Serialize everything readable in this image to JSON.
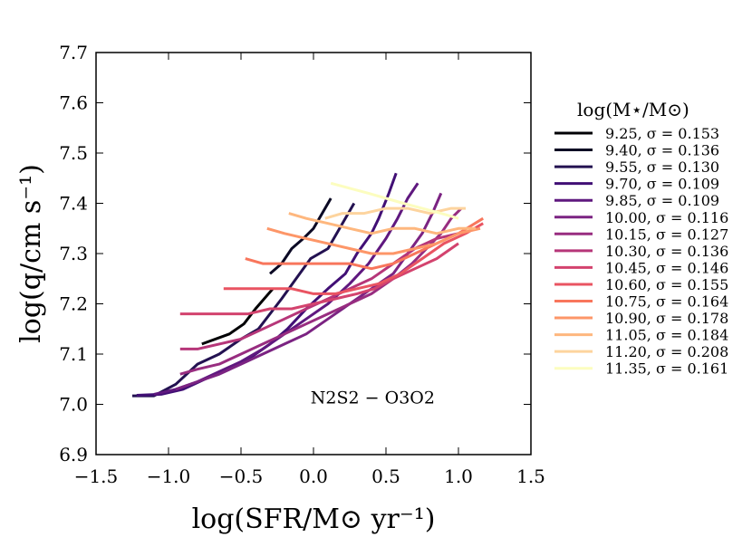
{
  "chart_data": {
    "type": "line",
    "xlabel": "log(SFR/M⊙ yr⁻¹)",
    "ylabel": "log(q/cm s⁻¹)",
    "xlim": [
      -1.5,
      1.5
    ],
    "ylim": [
      6.9,
      7.7
    ],
    "xticks": [
      -1.5,
      -1.0,
      -0.5,
      0.0,
      0.5,
      1.0,
      1.5
    ],
    "xtick_labels": [
      "−1.5",
      "−1.0",
      "−0.5",
      "0.0",
      "0.5",
      "1.0",
      "1.5"
    ],
    "yticks": [
      6.9,
      7.0,
      7.1,
      7.2,
      7.3,
      7.4,
      7.5,
      7.6,
      7.7
    ],
    "ytick_labels": [
      "6.9",
      "7.0",
      "7.1",
      "7.2",
      "7.3",
      "7.4",
      "7.5",
      "7.6",
      "7.7"
    ],
    "grid": false,
    "annotation": "N2S2 − O3O2",
    "legend": {
      "title": "log(M⋆/M⊙)",
      "placement": "right, outside plot"
    },
    "series": [
      {
        "name": "9.25,  σ = 0.153",
        "color": "#000004",
        "x": [
          -0.77,
          -0.58,
          -0.48,
          -0.4,
          -0.28
        ],
        "y": [
          7.12,
          7.14,
          7.16,
          7.19,
          7.23
        ]
      },
      {
        "name": "9.40,  σ = 0.136",
        "color": "#0b0924",
        "x": [
          -0.3,
          -0.22,
          -0.15,
          -0.07,
          0.0,
          0.06,
          0.12
        ],
        "y": [
          7.26,
          7.28,
          7.31,
          7.33,
          7.35,
          7.38,
          7.41
        ]
      },
      {
        "name": "9.55,  σ = 0.130",
        "color": "#231151",
        "x": [
          -1.25,
          -1.1,
          -0.95,
          -0.8,
          -0.65,
          -0.5,
          -0.38,
          -0.3,
          -0.22,
          -0.12,
          -0.02,
          0.1,
          0.18,
          0.28
        ],
        "y": [
          7.017,
          7.017,
          7.04,
          7.08,
          7.1,
          7.13,
          7.15,
          7.18,
          7.21,
          7.25,
          7.29,
          7.31,
          7.35,
          7.4
        ]
      },
      {
        "name": "9.70,  σ = 0.109",
        "color": "#410f75",
        "x": [
          -1.22,
          -1.05,
          -0.9,
          -0.75,
          -0.6,
          -0.45,
          -0.3,
          -0.18,
          -0.05,
          0.1,
          0.22,
          0.3,
          0.4,
          0.45,
          0.52,
          0.57
        ],
        "y": [
          7.018,
          7.02,
          7.03,
          7.05,
          7.07,
          7.09,
          7.12,
          7.15,
          7.19,
          7.23,
          7.26,
          7.3,
          7.34,
          7.37,
          7.42,
          7.46
        ]
      },
      {
        "name": "9.85,  σ = 0.109",
        "color": "#5f187f",
        "x": [
          -1.1,
          -0.95,
          -0.8,
          -0.65,
          -0.5,
          -0.35,
          -0.2,
          -0.05,
          0.1,
          0.25,
          0.38,
          0.5,
          0.58,
          0.65,
          0.72
        ],
        "y": [
          7.02,
          7.03,
          7.045,
          7.065,
          7.085,
          7.11,
          7.14,
          7.17,
          7.2,
          7.24,
          7.28,
          7.33,
          7.37,
          7.41,
          7.44
        ]
      },
      {
        "name": "10.00, σ = 0.116",
        "color": "#7b2382",
        "x": [
          -0.95,
          -0.8,
          -0.65,
          -0.5,
          -0.35,
          -0.2,
          -0.05,
          0.1,
          0.25,
          0.4,
          0.55,
          0.65,
          0.75,
          0.82,
          0.88
        ],
        "y": [
          7.03,
          7.045,
          7.06,
          7.08,
          7.1,
          7.12,
          7.14,
          7.17,
          7.2,
          7.23,
          7.26,
          7.3,
          7.34,
          7.38,
          7.42
        ]
      },
      {
        "name": "10.15, σ = 0.127",
        "color": "#982d80",
        "x": [
          -0.92,
          -0.8,
          -0.65,
          -0.5,
          -0.35,
          -0.2,
          -0.05,
          0.1,
          0.25,
          0.4,
          0.55,
          0.68,
          0.78,
          0.88,
          0.95,
          1.02
        ],
        "y": [
          7.06,
          7.07,
          7.08,
          7.1,
          7.12,
          7.14,
          7.16,
          7.18,
          7.2,
          7.22,
          7.25,
          7.28,
          7.31,
          7.34,
          7.37,
          7.39
        ]
      },
      {
        "name": "10.30, σ = 0.136",
        "color": "#b63679",
        "x": [
          -0.92,
          -0.8,
          -0.65,
          -0.5,
          -0.35,
          -0.2,
          -0.05,
          0.1,
          0.25,
          0.4,
          0.55,
          0.7,
          0.85,
          1.0
        ],
        "y": [
          7.11,
          7.11,
          7.12,
          7.13,
          7.15,
          7.17,
          7.19,
          7.21,
          7.23,
          7.25,
          7.28,
          7.31,
          7.33,
          7.34
        ]
      },
      {
        "name": "10.45, σ = 0.146",
        "color": "#d3436e",
        "x": [
          -0.92,
          -0.75,
          -0.6,
          -0.45,
          -0.3,
          -0.15,
          0.0,
          0.15,
          0.3,
          0.42,
          0.55,
          0.7,
          0.85,
          1.0
        ],
        "y": [
          7.18,
          7.18,
          7.18,
          7.18,
          7.19,
          7.19,
          7.2,
          7.21,
          7.22,
          7.23,
          7.25,
          7.27,
          7.29,
          7.32
        ]
      },
      {
        "name": "10.60, σ = 0.155",
        "color": "#e95462",
        "x": [
          -0.62,
          -0.45,
          -0.3,
          -0.15,
          0.0,
          0.15,
          0.3,
          0.45,
          0.6,
          0.75,
          0.9,
          1.05,
          1.17
        ],
        "y": [
          7.23,
          7.23,
          7.23,
          7.23,
          7.22,
          7.22,
          7.23,
          7.24,
          7.26,
          7.29,
          7.32,
          7.34,
          7.36
        ]
      },
      {
        "name": "10.75, σ = 0.164",
        "color": "#f8765c",
        "x": [
          -0.47,
          -0.35,
          -0.2,
          -0.05,
          0.1,
          0.25,
          0.4,
          0.55,
          0.7,
          0.85,
          1.0,
          1.17
        ],
        "y": [
          7.29,
          7.28,
          7.28,
          7.28,
          7.28,
          7.28,
          7.27,
          7.28,
          7.3,
          7.32,
          7.34,
          7.37
        ]
      },
      {
        "name": "10.90, σ = 0.178",
        "color": "#fd9668",
        "x": [
          -0.32,
          -0.2,
          -0.05,
          0.1,
          0.25,
          0.4,
          0.55,
          0.7,
          0.85,
          1.0,
          1.15
        ],
        "y": [
          7.35,
          7.34,
          7.33,
          7.32,
          7.31,
          7.3,
          7.3,
          7.31,
          7.32,
          7.34,
          7.35
        ]
      },
      {
        "name": "11.05, σ = 0.184",
        "color": "#feb77e",
        "x": [
          -0.17,
          -0.05,
          0.1,
          0.25,
          0.4,
          0.55,
          0.7,
          0.85,
          1.0,
          1.12
        ],
        "y": [
          7.38,
          7.37,
          7.36,
          7.35,
          7.34,
          7.35,
          7.35,
          7.34,
          7.35,
          7.35
        ]
      },
      {
        "name": "11.20, σ = 0.208",
        "color": "#fdd49e",
        "x": [
          0.08,
          0.2,
          0.35,
          0.5,
          0.65,
          0.8,
          0.95,
          1.05
        ],
        "y": [
          7.37,
          7.38,
          7.38,
          7.39,
          7.39,
          7.38,
          7.39,
          7.39
        ]
      },
      {
        "name": "11.35, σ = 0.161",
        "color": "#fcfdbf",
        "x": [
          0.12,
          0.25,
          0.38,
          0.5,
          0.62,
          0.75,
          0.88,
          1.0
        ],
        "y": [
          7.44,
          7.43,
          7.42,
          7.41,
          7.4,
          7.39,
          7.38,
          7.37
        ]
      }
    ]
  }
}
